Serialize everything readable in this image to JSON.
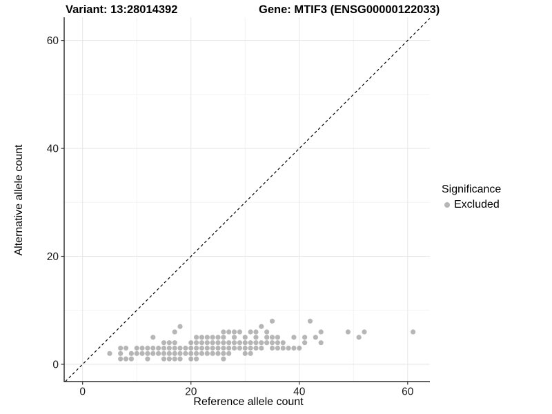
{
  "header": {
    "variant_title": "Variant: 13:28014392",
    "gene_title": "Gene: MTIF3 (ENSG00000122033)"
  },
  "chart_data": {
    "type": "scatter",
    "title": "Variant: 13:28014392 — Gene: MTIF3 (ENSG00000122033)",
    "xlabel": "Reference allele count",
    "ylabel": "Alternative allele count",
    "xlim": [
      -3.4,
      64.1
    ],
    "ylim": [
      -3.2,
      64.3
    ],
    "x_ticks": [
      0,
      20,
      40,
      60
    ],
    "y_ticks": [
      0,
      20,
      40,
      60
    ],
    "x_minor_gridlines": [
      10,
      30,
      50
    ],
    "y_minor_gridlines": [
      10,
      30,
      50
    ],
    "grid": "major+minor",
    "gridline_major_color": "#e6e6e6",
    "gridline_minor_color": "#f3f3f3",
    "axis_line_color": "#000000",
    "identity_line": {
      "slope": 1,
      "intercept": 0,
      "style": "dashed",
      "color": "#000000"
    },
    "legend": {
      "title": "Significance",
      "position": "right",
      "items": [
        {
          "label": "Excluded",
          "marker": "circle",
          "color": "#b5b5b5"
        }
      ]
    },
    "series": [
      {
        "name": "Excluded",
        "marker": "circle",
        "color": "#6e6e6e",
        "opacity": 0.5,
        "points": [
          [
            7,
            1
          ],
          [
            8,
            1
          ],
          [
            9,
            1
          ],
          [
            12,
            1
          ],
          [
            15,
            1
          ],
          [
            16,
            1
          ],
          [
            17,
            1
          ],
          [
            18,
            1
          ],
          [
            20,
            1
          ],
          [
            21,
            1
          ],
          [
            26,
            1
          ],
          [
            5,
            2
          ],
          [
            7,
            2
          ],
          [
            9,
            2
          ],
          [
            10,
            2
          ],
          [
            11,
            2
          ],
          [
            12,
            2
          ],
          [
            13,
            2
          ],
          [
            14,
            2
          ],
          [
            15,
            2
          ],
          [
            16,
            2
          ],
          [
            17,
            2
          ],
          [
            18,
            2
          ],
          [
            19,
            2
          ],
          [
            20,
            2
          ],
          [
            21,
            2
          ],
          [
            22,
            2
          ],
          [
            23,
            2
          ],
          [
            24,
            2
          ],
          [
            25,
            2
          ],
          [
            26,
            2
          ],
          [
            27,
            2
          ],
          [
            30,
            2
          ],
          [
            31,
            2
          ],
          [
            7,
            3
          ],
          [
            8,
            3
          ],
          [
            10,
            3
          ],
          [
            11,
            3
          ],
          [
            12,
            3
          ],
          [
            13,
            3
          ],
          [
            14,
            3
          ],
          [
            15,
            3
          ],
          [
            16,
            3
          ],
          [
            17,
            3
          ],
          [
            18,
            3
          ],
          [
            19,
            3
          ],
          [
            20,
            3
          ],
          [
            21,
            3
          ],
          [
            22,
            3
          ],
          [
            23,
            3
          ],
          [
            24,
            3
          ],
          [
            25,
            3
          ],
          [
            26,
            3
          ],
          [
            27,
            3
          ],
          [
            28,
            3
          ],
          [
            29,
            3
          ],
          [
            30,
            3
          ],
          [
            31,
            3
          ],
          [
            32,
            3
          ],
          [
            33,
            3
          ],
          [
            35,
            3
          ],
          [
            36,
            3
          ],
          [
            37,
            3
          ],
          [
            38,
            3
          ],
          [
            39,
            3
          ],
          [
            40,
            3
          ],
          [
            15,
            4
          ],
          [
            16,
            4
          ],
          [
            17,
            4
          ],
          [
            20,
            4
          ],
          [
            21,
            4
          ],
          [
            22,
            4
          ],
          [
            23,
            4
          ],
          [
            24,
            4
          ],
          [
            25,
            4
          ],
          [
            26,
            4
          ],
          [
            27,
            4
          ],
          [
            28,
            4
          ],
          [
            29,
            4
          ],
          [
            30,
            4
          ],
          [
            31,
            4
          ],
          [
            32,
            4
          ],
          [
            33,
            4
          ],
          [
            34,
            4
          ],
          [
            35,
            4
          ],
          [
            36,
            4
          ],
          [
            37,
            4
          ],
          [
            41,
            4
          ],
          [
            44,
            4
          ],
          [
            13,
            5
          ],
          [
            21,
            5
          ],
          [
            22,
            5
          ],
          [
            23,
            5
          ],
          [
            24,
            5
          ],
          [
            25,
            5
          ],
          [
            26,
            5
          ],
          [
            28,
            5
          ],
          [
            30,
            5
          ],
          [
            32,
            5
          ],
          [
            34,
            5
          ],
          [
            35,
            5
          ],
          [
            36,
            5
          ],
          [
            39,
            5
          ],
          [
            41,
            5
          ],
          [
            43,
            5
          ],
          [
            51,
            5
          ],
          [
            17,
            6
          ],
          [
            26,
            6
          ],
          [
            27,
            6
          ],
          [
            28,
            6
          ],
          [
            29,
            6
          ],
          [
            31,
            6
          ],
          [
            32,
            6
          ],
          [
            34,
            6
          ],
          [
            44,
            6
          ],
          [
            49,
            6
          ],
          [
            52,
            6
          ],
          [
            61,
            6
          ],
          [
            18,
            7
          ],
          [
            33,
            7
          ],
          [
            35,
            8
          ],
          [
            42,
            8
          ]
        ]
      }
    ]
  }
}
